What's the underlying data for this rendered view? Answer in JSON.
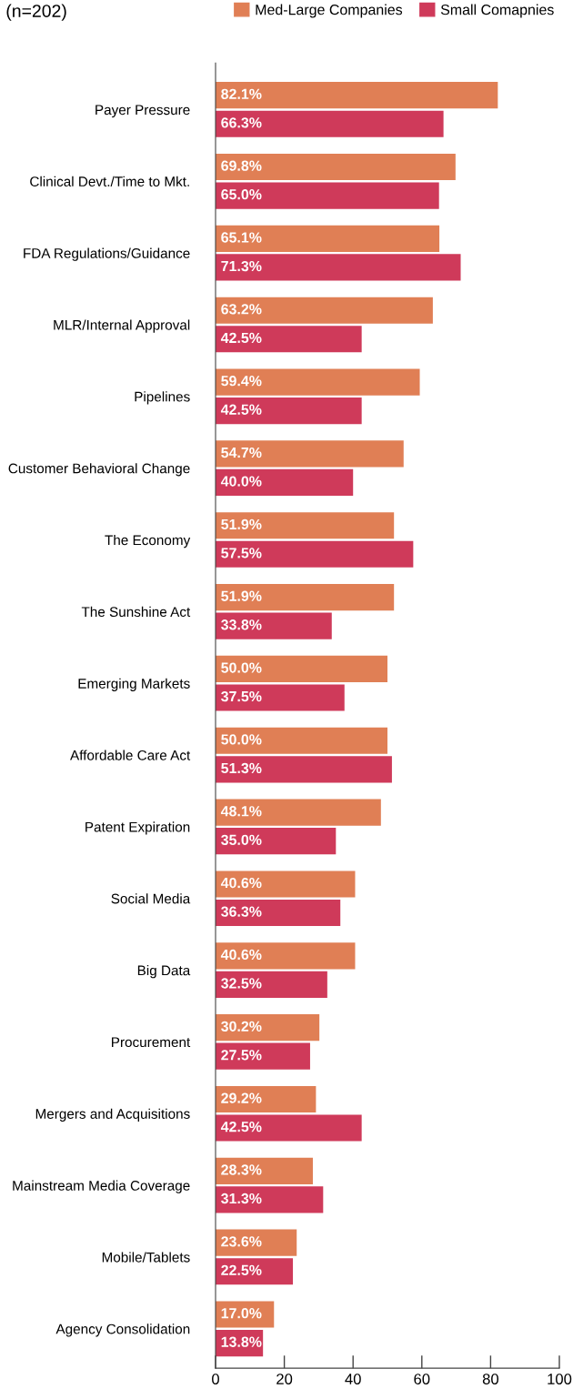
{
  "chart_data": {
    "type": "bar",
    "orientation": "horizontal",
    "title": "(n=202)",
    "categories": [
      "Payer Pressure",
      "Clinical Devt./Time to Mkt.",
      "FDA Regulations/Guidance",
      "MLR/Internal Approval",
      "Pipelines",
      "Customer Behavioral Change",
      "The Economy",
      "The Sunshine Act",
      "Emerging Markets",
      "Affordable Care Act",
      "Patent Expiration",
      "Social Media",
      "Big Data",
      "Procurement",
      "Mergers and Acquisitions",
      "Mainstream Media Coverage",
      "Mobile/Tablets",
      "Agency Consolidation"
    ],
    "series": [
      {
        "name": "Med-Large Companies",
        "color": "#e07f55",
        "values": [
          82.1,
          69.8,
          65.1,
          63.2,
          59.4,
          54.7,
          51.9,
          51.9,
          50.0,
          50.0,
          48.1,
          40.6,
          40.6,
          30.2,
          29.2,
          28.3,
          23.6,
          17.0
        ],
        "value_labels": [
          "82.1%",
          "69.8%",
          "65.1%",
          "63.2%",
          "59.4%",
          "54.7%",
          "51.9%",
          "51.9%",
          "50.0%",
          "50.0%",
          "48.1%",
          "40.6%",
          "40.6%",
          "30.2%",
          "29.2%",
          "28.3%",
          "23.6%",
          "17.0%"
        ]
      },
      {
        "name": "Small Comapnies",
        "color": "#cf3a5a",
        "values": [
          66.3,
          65.0,
          71.3,
          42.5,
          42.5,
          40.0,
          57.5,
          33.8,
          37.5,
          51.3,
          35.0,
          36.3,
          32.5,
          27.5,
          42.5,
          31.3,
          22.5,
          13.8
        ],
        "value_labels": [
          "66.3%",
          "65.0%",
          "71.3%",
          "42.5%",
          "42.5%",
          "40.0%",
          "57.5%",
          "33.8%",
          "37.5%",
          "51.3%",
          "35.0%",
          "36.3%",
          "32.5%",
          "27.5%",
          "42.5%",
          "31.3%",
          "22.5%",
          "13.8%"
        ]
      }
    ],
    "xlim": [
      0,
      100
    ],
    "xticks": [
      0,
      20,
      40,
      60,
      80,
      100
    ],
    "grid": false,
    "legend": "top"
  }
}
